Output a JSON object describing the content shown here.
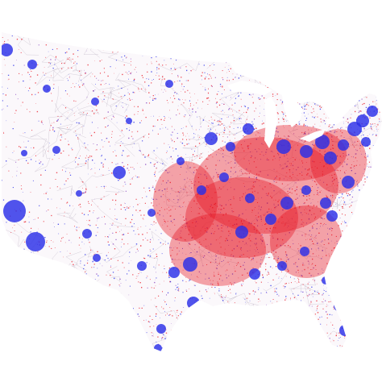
{
  "map": {
    "subject": "contiguous-united-states",
    "style": "dot-density",
    "colors": {
      "background": "#ffffff",
      "red": "#e8121f",
      "blue": "#2a2ee8",
      "purple": "#7a2bb8",
      "road_gray": "#9a8fa6"
    }
  }
}
